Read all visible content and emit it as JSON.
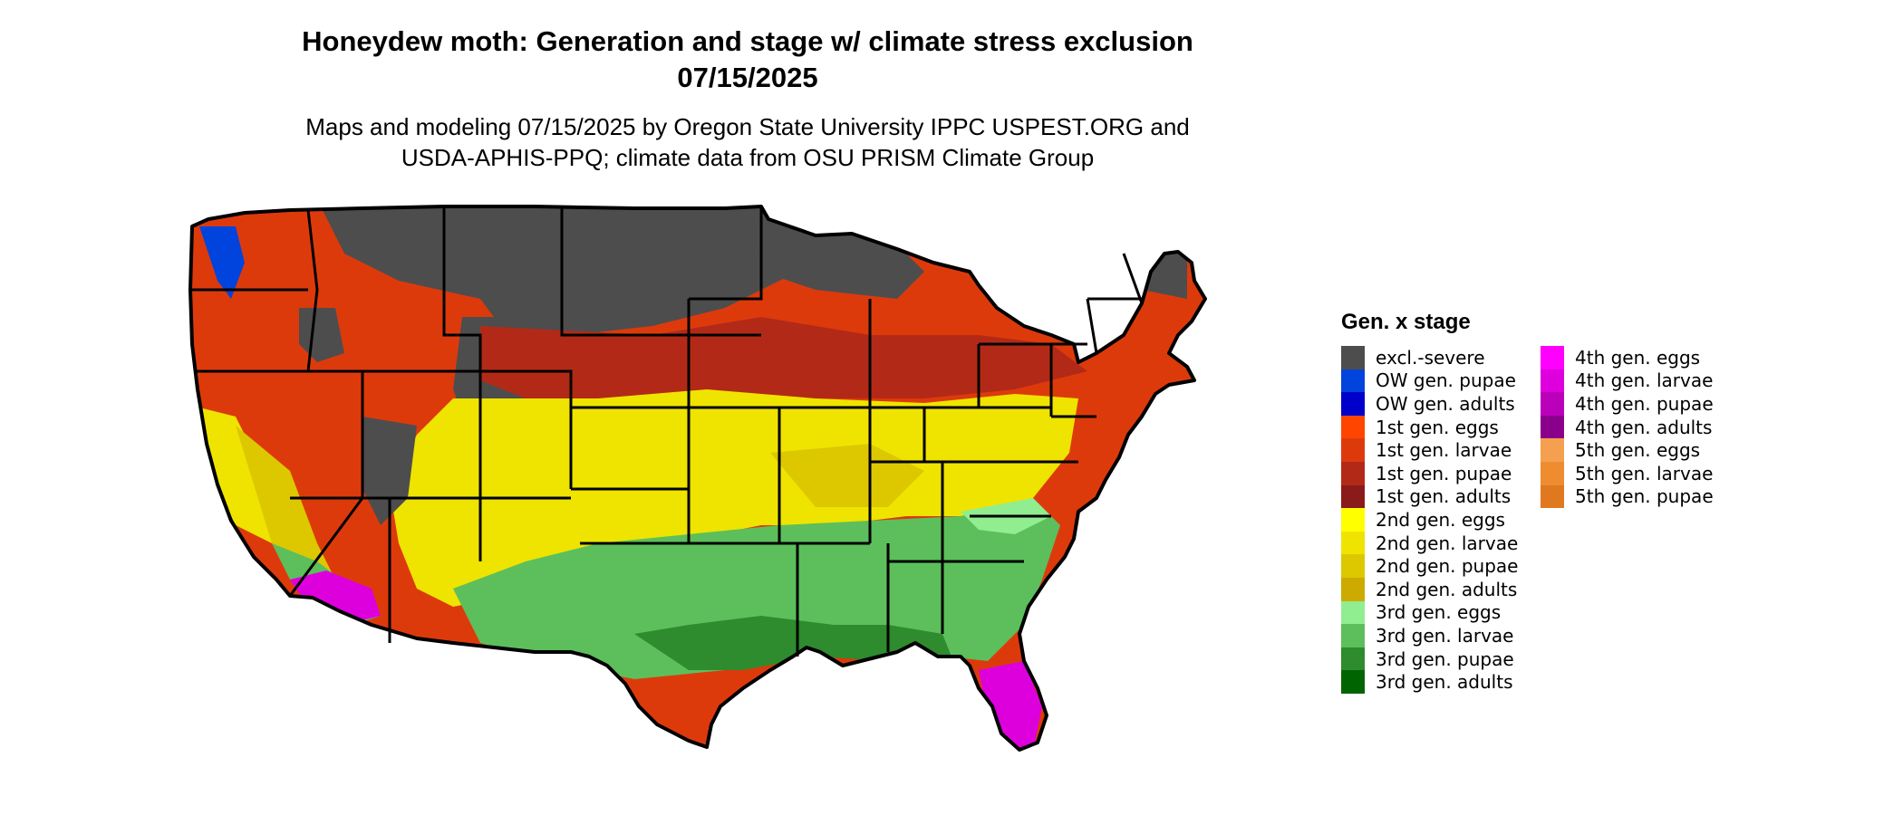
{
  "title_line1": "Honeydew moth: Generation and stage w/ climate stress exclusion",
  "title_line2": "07/15/2025",
  "subtitle_line1": "Maps and modeling 07/15/2025 by Oregon State University IPPC USPEST.ORG and",
  "subtitle_line2": "USDA-APHIS-PPQ; climate data from OSU PRISM Climate Group",
  "legend": {
    "title": "Gen. x stage",
    "column1": [
      {
        "label": "excl.-severe",
        "color": "#4d4d4d"
      },
      {
        "label": "OW gen. pupae",
        "color": "#0044dd"
      },
      {
        "label": "OW gen. adults",
        "color": "#0000cc"
      },
      {
        "label": "1st gen. eggs",
        "color": "#ff4500"
      },
      {
        "label": "1st gen. larvae",
        "color": "#dd3a0c"
      },
      {
        "label": "1st gen. pupae",
        "color": "#b22a17"
      },
      {
        "label": "1st gen. adults",
        "color": "#8b1a1a"
      },
      {
        "label": "2nd gen. eggs",
        "color": "#ffff00"
      },
      {
        "label": "2nd gen. larvae",
        "color": "#eee400"
      },
      {
        "label": "2nd gen. pupae",
        "color": "#ddc800"
      },
      {
        "label": "2nd gen. adults",
        "color": "#ccaa00"
      },
      {
        "label": "3rd gen. eggs",
        "color": "#90ee90"
      },
      {
        "label": "3rd gen. larvae",
        "color": "#5cbf5c"
      },
      {
        "label": "3rd gen. pupae",
        "color": "#2e8b2e"
      },
      {
        "label": "3rd gen. adults",
        "color": "#006400"
      }
    ],
    "column2": [
      {
        "label": "4th gen. eggs",
        "color": "#ff00ff"
      },
      {
        "label": "4th gen. larvae",
        "color": "#dd00dd"
      },
      {
        "label": "4th gen. pupae",
        "color": "#bb00bb"
      },
      {
        "label": "4th gen. adults",
        "color": "#8b008b"
      },
      {
        "label": "5th gen. eggs",
        "color": "#f5a050"
      },
      {
        "label": "5th gen. larvae",
        "color": "#f08c30"
      },
      {
        "label": "5th gen. pupae",
        "color": "#e07820"
      }
    ]
  }
}
